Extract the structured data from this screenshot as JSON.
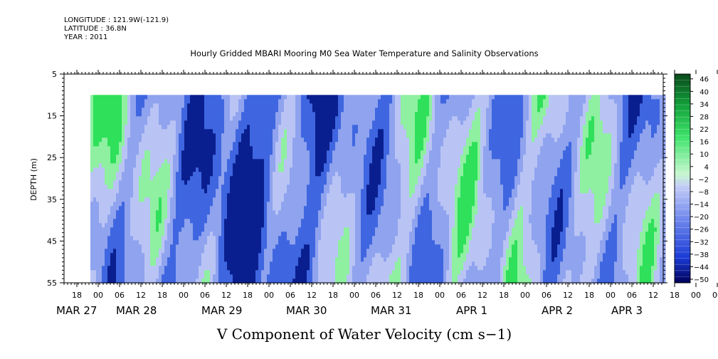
{
  "header": {
    "longitude": "LONGITUDE : 121.9W(-121.9)",
    "latitude": "LATITUDE : 36.8N",
    "year": "YEAR : 2011"
  },
  "chart_data": {
    "type": "heatmap",
    "title": "Hourly Gridded MBARI Mooring M0 Sea Water Temperature and Salinity Observations",
    "xlabel": "",
    "ylabel": "DEPTH (m)",
    "colorbar_label": "V Component of Water Velocity (cm s-1)",
    "y_range": [
      5,
      55
    ],
    "y_inverted": true,
    "y_ticks": [
      5,
      15,
      25,
      35,
      45,
      55
    ],
    "data_depth_range": [
      10,
      55
    ],
    "x_hour_ticks": [
      "18",
      "00",
      "06",
      "12",
      "18",
      "00",
      "06",
      "12",
      "18",
      "00",
      "06",
      "12",
      "18",
      "00",
      "06",
      "12",
      "18",
      "00",
      "06",
      "12",
      "18",
      "00",
      "06",
      "12",
      "18",
      "00",
      "06",
      "12",
      "18",
      "00",
      "06",
      "12"
    ],
    "x_date_labels": [
      "MAR 27",
      "MAR 28",
      "MAR 29",
      "MAR 30",
      "MAR 31",
      "APR  1",
      "APR  2",
      "APR  3"
    ],
    "colorbar_ticks": [
      "46",
      "40",
      "34",
      "28",
      "22",
      "16",
      "10",
      "4",
      "-2",
      "-8",
      "-14",
      "-20",
      "-26",
      "-32",
      "-38",
      "-44",
      "-50"
    ],
    "colorbar_range": [
      -50,
      50
    ],
    "colors": {
      "strong_negative": "#0a1f8f",
      "negative": "#3f66e0",
      "weak_negative": "#8fa3ee",
      "near_zero": "#b9c4f5",
      "weak_positive": "#8ef0a0",
      "positive": "#2ee05a",
      "strong_positive": "#0a7a2a"
    }
  },
  "footer": {
    "xlabel": "V Component of Water Velocity (cm s−1)"
  }
}
